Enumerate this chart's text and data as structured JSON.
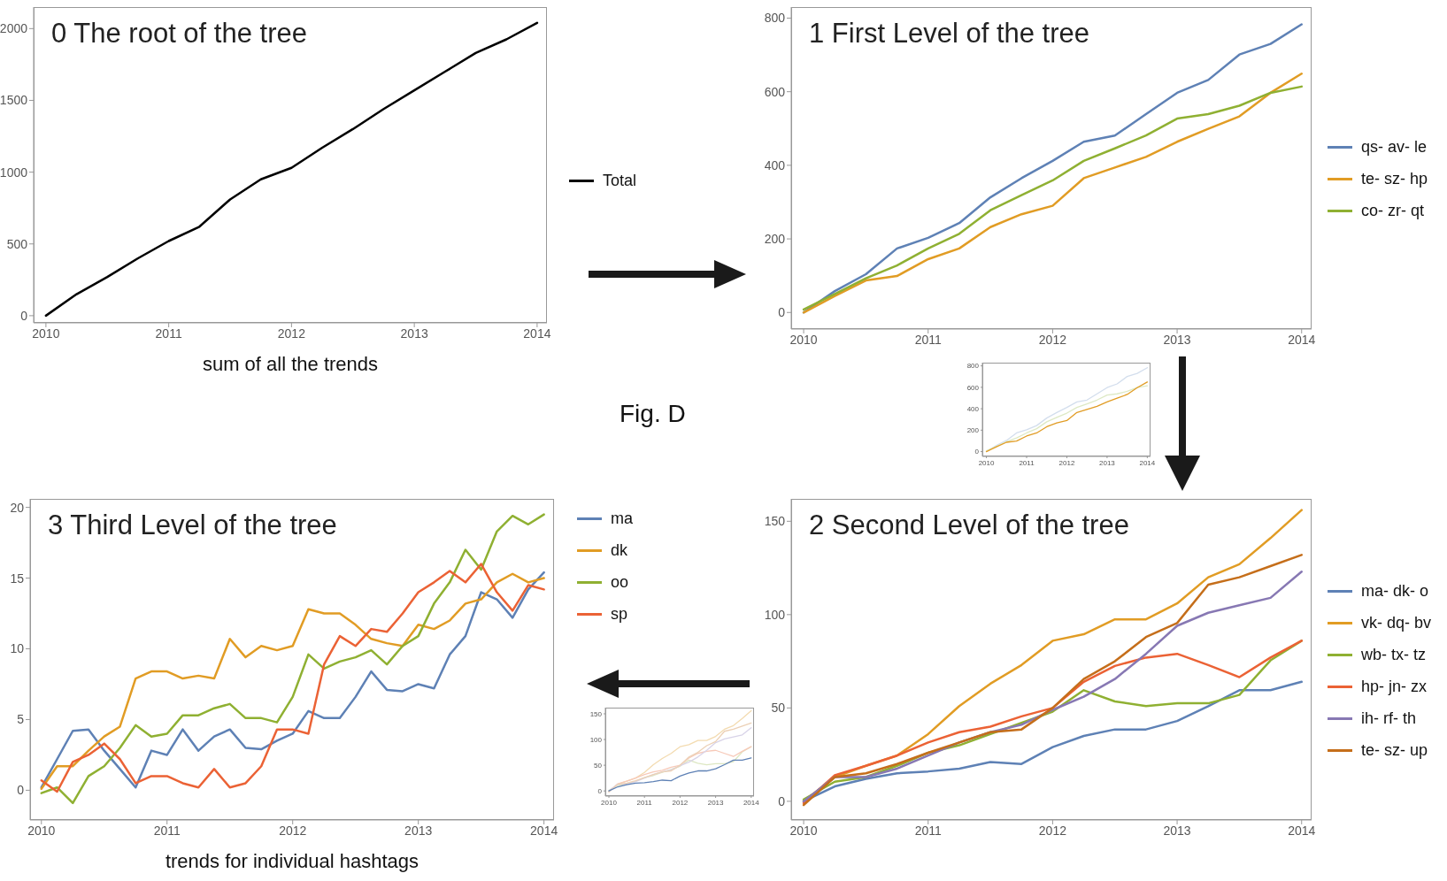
{
  "chart_data": [
    {
      "type": "line",
      "title": "0 The root of the tree",
      "xlabel": "sum of all the trends",
      "annotations": [
        "Fig. D"
      ],
      "legend": "right",
      "x": [
        2010,
        2010.25,
        2010.5,
        2010.75,
        2011,
        2011.25,
        2011.5,
        2011.75,
        2012,
        2012.25,
        2012.5,
        2012.75,
        2013,
        2013.25,
        2013.5,
        2013.75,
        2014
      ],
      "xlim": [
        2009.9,
        2014.08
      ],
      "xticks": [
        2010,
        2011,
        2012,
        2013,
        2014
      ],
      "ylim": [
        -50,
        2150
      ],
      "yticks": [
        0,
        500,
        1000,
        1500,
        2000
      ],
      "series": [
        {
          "name": "Total",
          "color": "#000000",
          "values": [
            0,
            150,
            270,
            400,
            520,
            620,
            810,
            950,
            1030,
            1170,
            1300,
            1440,
            1570,
            1700,
            1830,
            1925,
            2040
          ]
        }
      ]
    },
    {
      "type": "line",
      "title": "1 First Level of the tree",
      "legend": "right",
      "x": [
        2010,
        2010.25,
        2010.5,
        2010.75,
        2011,
        2011.25,
        2011.5,
        2011.75,
        2012,
        2012.25,
        2012.5,
        2012.75,
        2013,
        2013.25,
        2013.5,
        2013.75,
        2014
      ],
      "xlim": [
        2009.9,
        2014.08
      ],
      "xticks": [
        2010,
        2011,
        2012,
        2013,
        2014
      ],
      "ylim": [
        -45,
        830
      ],
      "yticks": [
        0,
        200,
        400,
        600,
        800
      ],
      "series": [
        {
          "name": "qs- av- le",
          "color": "#5e81b5",
          "values": [
            0,
            58,
            104,
            174,
            203,
            243,
            313,
            365,
            412,
            464,
            481,
            539,
            597,
            632,
            701,
            730,
            783
          ]
        },
        {
          "name": "te- sz- hp",
          "color": "#e19c24",
          "values": [
            0,
            45,
            87,
            99,
            145,
            174,
            232,
            267,
            290,
            365,
            394,
            423,
            464,
            499,
            533,
            597,
            649
          ]
        },
        {
          "name": "co- zr- qt",
          "color": "#8fb032",
          "values": [
            8,
            50,
            93,
            128,
            174,
            214,
            278,
            319,
            359,
            412,
            446,
            481,
            527,
            539,
            562,
            597,
            614
          ]
        }
      ]
    },
    {
      "type": "line",
      "title": "2 Second Level of the tree",
      "legend": "right",
      "x": [
        2010,
        2010.25,
        2010.5,
        2010.75,
        2011,
        2011.25,
        2011.5,
        2011.75,
        2012,
        2012.25,
        2012.5,
        2012.75,
        2013,
        2013.25,
        2013.5,
        2013.75,
        2014
      ],
      "xlim": [
        2009.9,
        2014.08
      ],
      "xticks": [
        2010,
        2011,
        2012,
        2013,
        2014
      ],
      "ylim": [
        -10,
        162
      ],
      "yticks": [
        0,
        50,
        100,
        150
      ],
      "series": [
        {
          "name": "ma- dk- o",
          "color": "#5e81b5",
          "values": [
            0,
            8,
            12,
            15,
            16,
            17.5,
            21,
            20,
            29,
            35,
            38.5,
            38.5,
            43,
            51,
            59.5,
            59.5,
            64
          ]
        },
        {
          "name": "vk- dq- bv",
          "color": "#e19c24",
          "values": [
            0,
            13,
            19,
            24.5,
            36,
            51,
            63,
            73,
            86,
            89.5,
            97.5,
            97.5,
            106,
            120,
            127,
            141,
            156
          ]
        },
        {
          "name": "wb- tx- tz",
          "color": "#8fb032",
          "values": [
            1,
            10.5,
            13,
            19,
            26,
            30,
            36,
            42,
            48,
            59.5,
            53.5,
            51,
            52.5,
            52.5,
            57,
            75.5,
            86
          ]
        },
        {
          "name": "hp- jn- zx",
          "color": "#eb6235",
          "values": [
            -1,
            14,
            19,
            24.5,
            31.5,
            37,
            40,
            45.5,
            50,
            64,
            72.5,
            77,
            79,
            73,
            66.5,
            77,
            86
          ]
        },
        {
          "name": "ih- rf- th",
          "color": "#8778b3",
          "values": [
            0,
            13,
            13,
            17.5,
            24.5,
            31.5,
            37,
            41,
            49,
            56,
            65.5,
            79,
            94,
            101,
            105,
            109,
            123
          ]
        },
        {
          "name": "te- sz- up",
          "color": "#c56e1a",
          "values": [
            -2,
            13,
            15,
            20,
            26,
            31.5,
            37,
            38.5,
            50,
            65.5,
            75,
            88,
            95.5,
            116,
            120,
            126,
            132
          ]
        }
      ]
    },
    {
      "type": "line",
      "title": "3 Third Level of the tree",
      "xlabel": "trends for individual hashtags",
      "legend": "right",
      "x": [
        2010,
        2010.125,
        2010.25,
        2010.375,
        2010.5,
        2010.625,
        2010.75,
        2010.875,
        2011,
        2011.125,
        2011.25,
        2011.375,
        2011.5,
        2011.625,
        2011.75,
        2011.875,
        2012,
        2012.125,
        2012.25,
        2012.375,
        2012.5,
        2012.625,
        2012.75,
        2012.875,
        2013,
        2013.125,
        2013.25,
        2013.375,
        2013.5,
        2013.625,
        2013.75,
        2013.875,
        2014
      ],
      "xlim": [
        2009.91,
        2014.08
      ],
      "xticks": [
        2010,
        2011,
        2012,
        2013,
        2014
      ],
      "ylim": [
        -2.1,
        20.6
      ],
      "yticks": [
        0,
        5,
        10,
        15,
        20
      ],
      "series": [
        {
          "name": "ma",
          "color": "#5e81b5",
          "values": [
            0.2,
            2.2,
            4.2,
            4.3,
            2.8,
            1.5,
            0.2,
            2.8,
            2.5,
            4.3,
            2.8,
            3.8,
            4.3,
            3.0,
            2.9,
            3.5,
            4.0,
            5.6,
            5.1,
            5.1,
            6.6,
            8.4,
            7.1,
            7.0,
            7.5,
            7.2,
            9.6,
            10.9,
            14.0,
            13.5,
            12.2,
            14.2,
            15.4
          ]
        },
        {
          "name": "dk",
          "color": "#e19c24",
          "values": [
            0.1,
            1.7,
            1.7,
            2.8,
            3.8,
            4.5,
            7.9,
            8.4,
            8.4,
            7.9,
            8.1,
            7.9,
            10.7,
            9.4,
            10.2,
            9.9,
            10.2,
            12.8,
            12.5,
            12.5,
            11.7,
            10.7,
            10.4,
            10.2,
            11.7,
            11.4,
            12.0,
            13.2,
            13.5,
            14.7,
            15.3,
            14.7,
            15.0
          ]
        },
        {
          "name": "oo",
          "color": "#8fb032",
          "values": [
            -0.2,
            0.2,
            -0.9,
            1.0,
            1.7,
            3.0,
            4.6,
            3.8,
            4.0,
            5.3,
            5.3,
            5.8,
            6.1,
            5.1,
            5.1,
            4.8,
            6.6,
            9.6,
            8.6,
            9.1,
            9.4,
            9.9,
            8.9,
            10.2,
            10.9,
            13.2,
            14.7,
            17.0,
            15.6,
            18.3,
            19.4,
            18.8,
            19.5
          ]
        },
        {
          "name": "sp",
          "color": "#eb6235",
          "values": [
            0.7,
            -0.1,
            2.0,
            2.5,
            3.3,
            2.2,
            0.5,
            1.0,
            1.0,
            0.5,
            0.2,
            1.5,
            0.2,
            0.5,
            1.7,
            4.3,
            4.3,
            4.0,
            8.9,
            10.9,
            10.2,
            11.4,
            11.2,
            12.5,
            14.0,
            14.7,
            15.5,
            14.7,
            16.0,
            14.0,
            12.7,
            14.5,
            14.2
          ]
        }
      ]
    },
    {
      "type": "line",
      "x": [
        2010,
        2010.25,
        2010.5,
        2010.75,
        2011,
        2011.25,
        2011.5,
        2011.75,
        2012,
        2012.25,
        2012.5,
        2012.75,
        2013,
        2013.25,
        2013.5,
        2013.75,
        2014
      ],
      "xlim": [
        2009.9,
        2014.08
      ],
      "xticks": [
        2010,
        2011,
        2012,
        2013,
        2014
      ],
      "ylim": [
        -45,
        830
      ],
      "yticks": [
        0,
        200,
        400,
        600,
        800
      ],
      "series": [
        {
          "color": "#d3deed",
          "values": [
            0,
            58,
            104,
            174,
            203,
            243,
            313,
            365,
            412,
            464,
            481,
            539,
            597,
            632,
            701,
            730,
            783
          ]
        },
        {
          "color": "#dde9c5",
          "values": [
            8,
            50,
            93,
            128,
            174,
            214,
            278,
            319,
            359,
            412,
            446,
            481,
            527,
            539,
            562,
            597,
            614
          ]
        },
        {
          "color": "#e19c24",
          "values": [
            0,
            45,
            87,
            99,
            145,
            174,
            232,
            267,
            290,
            365,
            394,
            423,
            464,
            499,
            533,
            597,
            649
          ]
        }
      ]
    },
    {
      "type": "line",
      "x": [
        2010,
        2010.25,
        2010.5,
        2010.75,
        2011,
        2011.25,
        2011.5,
        2011.75,
        2012,
        2012.25,
        2012.5,
        2012.75,
        2013,
        2013.25,
        2013.5,
        2013.75,
        2014
      ],
      "xlim": [
        2009.9,
        2014.08
      ],
      "xticks": [
        2010,
        2011,
        2012,
        2013,
        2014
      ],
      "ylim": [
        -10,
        162
      ],
      "yticks": [
        0,
        50,
        100,
        150
      ],
      "series": [
        {
          "color": "#f3dbb0",
          "values": [
            0,
            13,
            19,
            25,
            36,
            51,
            63,
            73,
            86,
            90,
            98,
            98,
            106,
            120,
            127,
            141,
            156
          ]
        },
        {
          "color": "#dde7c2",
          "values": [
            1,
            11,
            13,
            19,
            26,
            30,
            36,
            42,
            48,
            60,
            54,
            51,
            53,
            53,
            57,
            76,
            86
          ]
        },
        {
          "color": "#f7c9b8",
          "values": [
            -1,
            14,
            19,
            25,
            32,
            37,
            40,
            46,
            50,
            64,
            73,
            77,
            79,
            73,
            67,
            77,
            86
          ]
        },
        {
          "color": "#d8d3e8",
          "values": [
            0,
            13,
            13,
            18,
            25,
            32,
            37,
            41,
            49,
            56,
            66,
            79,
            94,
            101,
            105,
            109,
            123
          ]
        },
        {
          "color": "#ecd0b5",
          "values": [
            -2,
            13,
            15,
            20,
            26,
            32,
            37,
            39,
            50,
            66,
            75,
            88,
            96,
            116,
            120,
            126,
            132
          ]
        },
        {
          "color": "#5e81b5",
          "values": [
            0,
            8,
            12,
            15,
            16,
            18,
            21,
            20,
            29,
            35,
            39,
            39,
            43,
            51,
            60,
            60,
            64
          ]
        }
      ]
    }
  ]
}
